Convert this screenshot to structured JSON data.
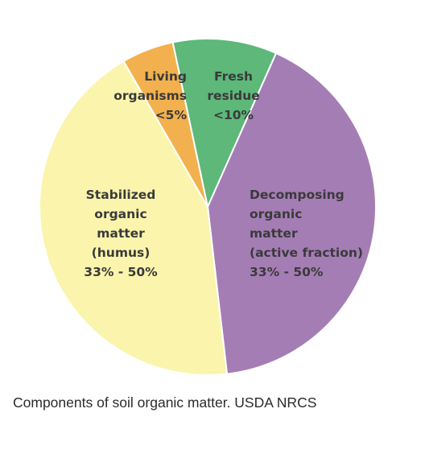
{
  "chart_data": {
    "type": "pie",
    "title": "",
    "slices": [
      {
        "key": "fresh-residue",
        "value": 10,
        "color": "#5db87a",
        "label_lines": [
          "Fresh",
          "residue",
          "<10%"
        ]
      },
      {
        "key": "decomposing",
        "value": 41.5,
        "color": "#a57db5",
        "label_lines": [
          "Decomposing",
          "organic",
          "matter",
          "(active fraction)",
          "33% - 50%"
        ]
      },
      {
        "key": "stabilized",
        "value": 43.5,
        "color": "#fbf4ad",
        "label_lines": [
          "Stabilized",
          "organic",
          "matter",
          "(humus)",
          "33% - 50%"
        ]
      },
      {
        "key": "living-organisms",
        "value": 5,
        "color": "#f2b14e",
        "label_lines": [
          "Living",
          "organisms",
          "<5%"
        ]
      }
    ]
  },
  "caption": {
    "text": "Components of soil organic matter. USDA NRCS"
  }
}
